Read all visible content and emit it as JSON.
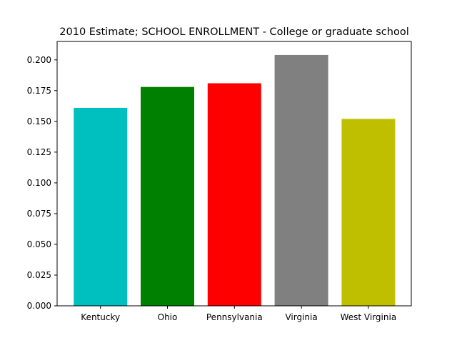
{
  "chart_data": {
    "type": "bar",
    "title": "2010 Estimate; SCHOOL ENROLLMENT - College or graduate school",
    "xlabel": "",
    "ylabel": "",
    "categories": [
      "Kentucky",
      "Ohio",
      "Pennsylvania",
      "Virginia",
      "West Virginia"
    ],
    "values": [
      0.161,
      0.178,
      0.181,
      0.204,
      0.152
    ],
    "colors": [
      "#00bfbf",
      "#008000",
      "#ff0000",
      "#808080",
      "#bfbf00"
    ],
    "ylim": [
      0,
      0.215
    ],
    "yticks": [
      "0.000",
      "0.025",
      "0.050",
      "0.075",
      "0.100",
      "0.125",
      "0.150",
      "0.175",
      "0.200"
    ],
    "grid": false,
    "legend": "none"
  }
}
